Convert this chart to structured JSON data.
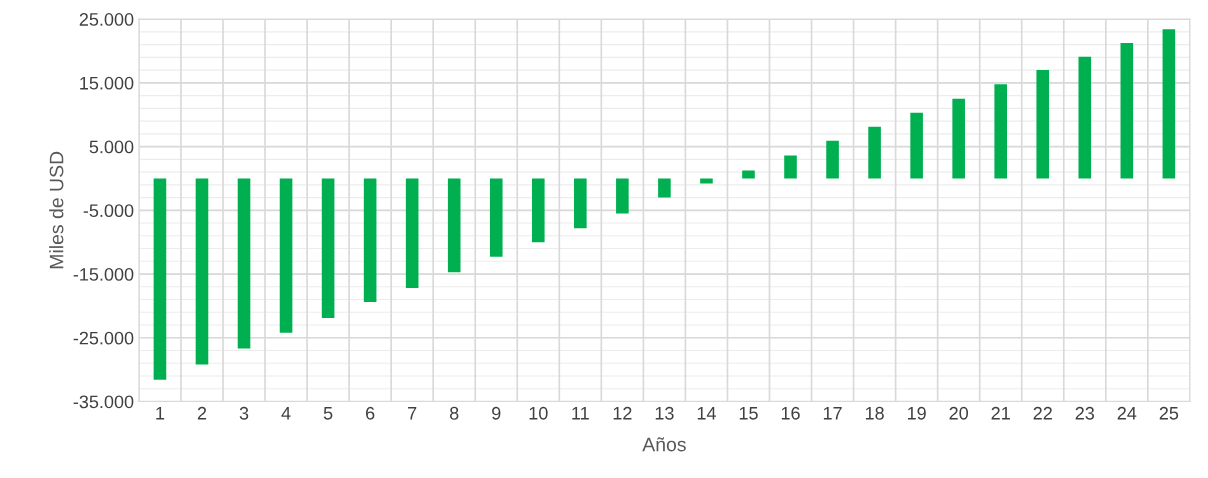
{
  "chart_data": {
    "type": "bar",
    "xlabel": "Años",
    "ylabel": "Miles de USD",
    "categories": [
      "1",
      "2",
      "3",
      "4",
      "5",
      "6",
      "7",
      "8",
      "9",
      "10",
      "11",
      "12",
      "13",
      "14",
      "15",
      "16",
      "17",
      "18",
      "19",
      "20",
      "21",
      "22",
      "23",
      "24",
      "25"
    ],
    "values": [
      -31600,
      -29200,
      -26700,
      -24200,
      -21900,
      -19400,
      -17200,
      -14700,
      -12300,
      -10000,
      -7800,
      -5500,
      -3000,
      -800,
      1250,
      3600,
      5900,
      8100,
      10300,
      12500,
      14800,
      17000,
      19100,
      21250,
      23400
    ],
    "color": "#00b050",
    "ylim": [
      -35000,
      25000
    ],
    "yticks": [
      {
        "value": -35000,
        "label": "-35.000"
      },
      {
        "value": -25000,
        "label": "-25.000"
      },
      {
        "value": -15000,
        "label": "-15.000"
      },
      {
        "value": -5000,
        "label": "-5.000"
      },
      {
        "value": 5000,
        "label": "5.000"
      },
      {
        "value": 15000,
        "label": "15.000"
      },
      {
        "value": 25000,
        "label": "25.000"
      }
    ],
    "grid": true
  }
}
